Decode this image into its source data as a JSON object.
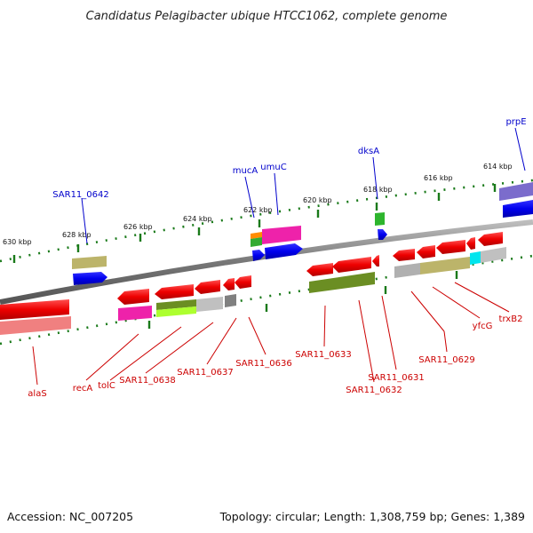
{
  "title": "Candidatus Pelagibacter ubique HTCC1062, complete genome",
  "footer": {
    "accession": "Accession: NC_007205",
    "summary": "Topology: circular; Length: 1,308,759 bp; Genes: 1,389"
  },
  "ticks": [
    "630 kbp",
    "628 kbp",
    "626 kbp",
    "624 kbp",
    "622 kbp",
    "620 kbp",
    "618 kbp",
    "616 kbp",
    "614 kbp"
  ],
  "labels_top": [
    "SAR11_0642",
    "mucA",
    "umuC",
    "dksA",
    "prpE"
  ],
  "labels_bottom": [
    "alaS",
    "recA",
    "tolC",
    "SAR11_0638",
    "SAR11_0637",
    "SAR11_0636",
    "SAR11_0633",
    "SAR11_0632",
    "SAR11_0631",
    "SAR11_0629",
    "yfcG",
    "trxB2"
  ],
  "colors": {
    "forward_strand": "#0000ee",
    "reverse_strand": "#ee0000",
    "top_label": "#0000cc",
    "bottom_label": "#cc0000",
    "tick": "#1a7a1a",
    "backbone": "#888888"
  }
}
